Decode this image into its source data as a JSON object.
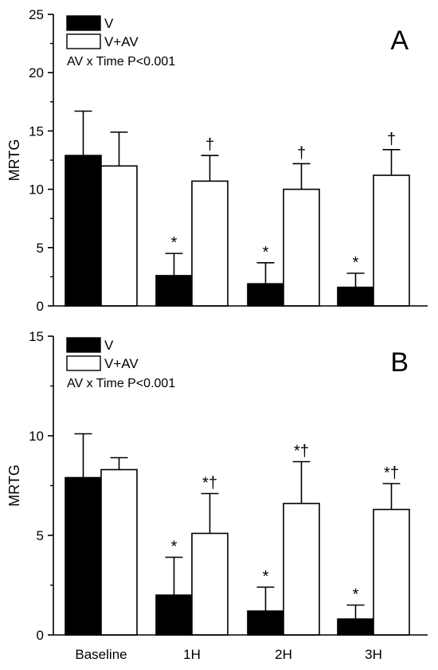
{
  "chart_data": [
    {
      "type": "bar",
      "panel_label": "A",
      "ylabel": "MRTG",
      "xlabel": "",
      "ylim": [
        0,
        25
      ],
      "yticks": [
        0,
        5,
        10,
        15,
        20,
        25
      ],
      "categories": [
        "Baseline",
        "1H",
        "2H",
        "3H"
      ],
      "show_category_labels": false,
      "series": [
        {
          "name": "V",
          "color": "#000000",
          "values": [
            12.9,
            2.6,
            1.9,
            1.6
          ],
          "errors": [
            3.8,
            1.9,
            1.8,
            1.2
          ],
          "annotations": [
            "",
            "*",
            "*",
            "*"
          ]
        },
        {
          "name": "V+AV",
          "color": "#ffffff",
          "values": [
            12.0,
            10.7,
            10.0,
            11.2
          ],
          "errors": [
            2.9,
            2.2,
            2.2,
            2.2
          ],
          "annotations": [
            "",
            "†",
            "†",
            "†"
          ]
        }
      ],
      "note": "AV x Time P<0.001",
      "legend_position": "top-left"
    },
    {
      "type": "bar",
      "panel_label": "B",
      "ylabel": "MRTG",
      "xlabel": "",
      "ylim": [
        0,
        15
      ],
      "yticks": [
        0,
        5,
        10,
        15
      ],
      "categories": [
        "Baseline",
        "1H",
        "2H",
        "3H"
      ],
      "show_category_labels": true,
      "series": [
        {
          "name": "V",
          "color": "#000000",
          "values": [
            7.9,
            2.0,
            1.2,
            0.8
          ],
          "errors": [
            2.2,
            1.9,
            1.2,
            0.7
          ],
          "annotations": [
            "",
            "*",
            "*",
            "*"
          ]
        },
        {
          "name": "V+AV",
          "color": "#ffffff",
          "values": [
            8.3,
            5.1,
            6.6,
            6.3
          ],
          "errors": [
            0.6,
            2.0,
            2.1,
            1.3
          ],
          "annotations": [
            "",
            "*†",
            "*†",
            "*†"
          ]
        }
      ],
      "note": "AV x Time P<0.001",
      "legend_position": "top-left"
    }
  ]
}
